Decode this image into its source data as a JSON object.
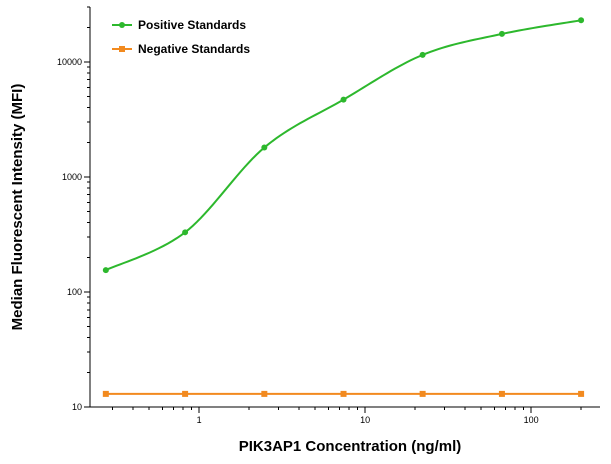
{
  "chart_data": {
    "type": "scatter",
    "title": "",
    "xlabel": "PIK3AP1 Concentration (ng/ml)",
    "ylabel": "Median Fluorescent Intensity (MFI)",
    "x_scale": "log",
    "y_scale": "log",
    "xlim": [
      0.22,
      260
    ],
    "ylim": [
      10,
      30000
    ],
    "x_ticks": [
      1,
      10,
      100
    ],
    "x_tick_labels": [
      "1",
      "10",
      "100"
    ],
    "y_ticks": [
      10,
      100,
      1000,
      10000
    ],
    "y_tick_labels": [
      "10",
      "100",
      "1000",
      "10000"
    ],
    "grid": false,
    "legend_position": "top-left",
    "series": [
      {
        "name": "Positive Standards",
        "color": "#2db82d",
        "marker": "circle",
        "x": [
          0.274,
          0.823,
          2.47,
          7.41,
          22.2,
          66.7,
          200
        ],
        "y": [
          155,
          330,
          1800,
          4700,
          11500,
          17500,
          23000
        ],
        "fit": "4pl"
      },
      {
        "name": "Negative Standards",
        "color": "#f28a1f",
        "marker": "square",
        "x": [
          0.274,
          0.823,
          2.47,
          7.41,
          22.2,
          66.7,
          200
        ],
        "y": [
          13,
          13,
          13,
          13,
          13,
          13,
          13
        ],
        "fit": "line"
      }
    ]
  }
}
